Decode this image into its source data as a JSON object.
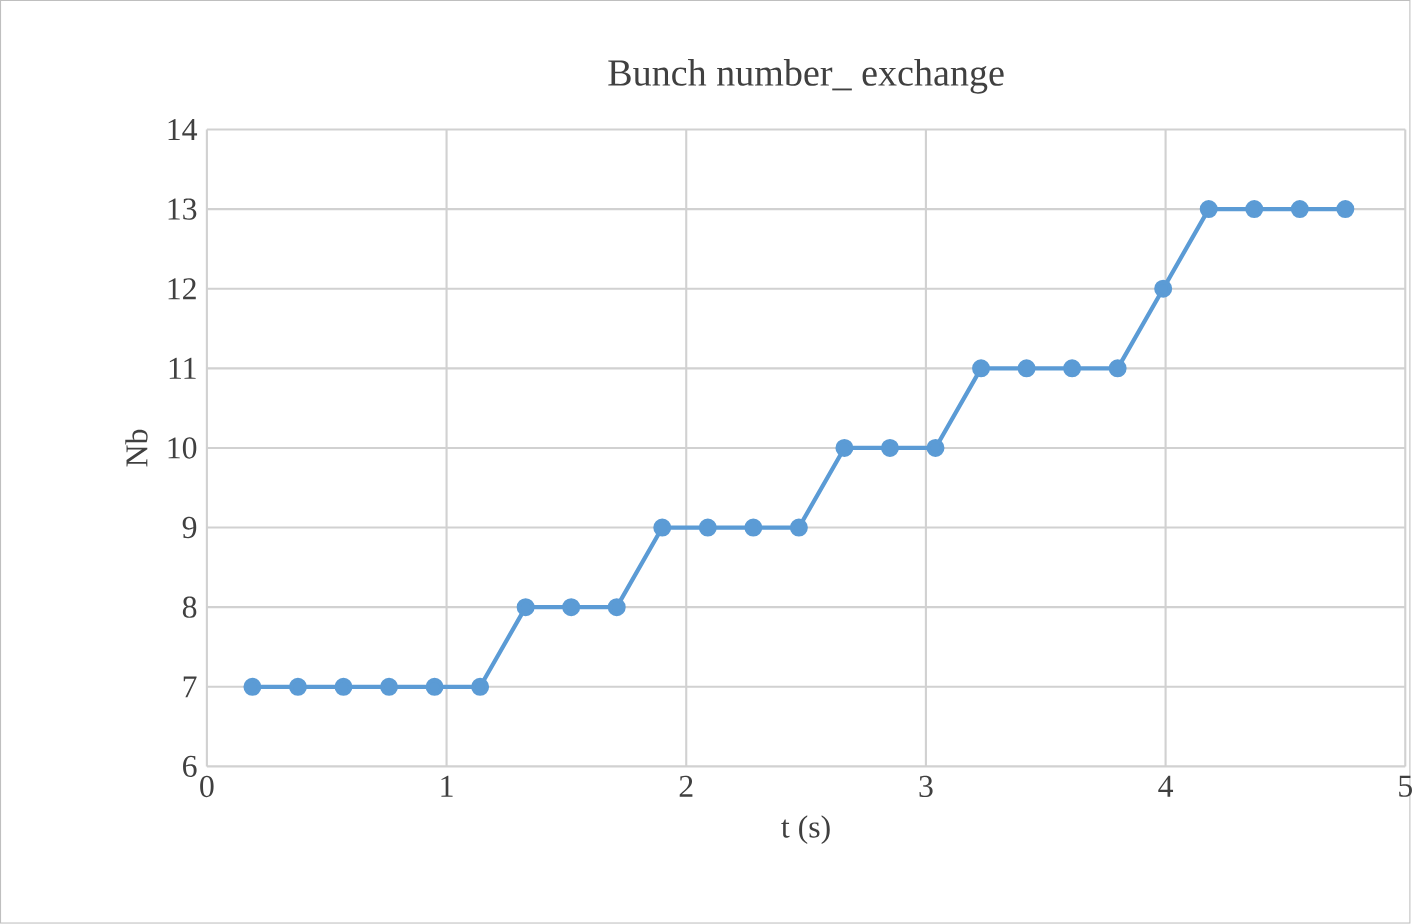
{
  "chart_data": {
    "type": "line",
    "title": "Bunch number_ exchange",
    "xlabel": "t (s)",
    "ylabel": "Nb",
    "x": [
      0.19,
      0.38,
      0.57,
      0.76,
      0.95,
      1.14,
      1.33,
      1.52,
      1.71,
      1.9,
      2.09,
      2.28,
      2.47,
      2.66,
      2.85,
      3.04,
      3.23,
      3.42,
      3.61,
      3.8,
      3.99,
      4.18,
      4.37,
      4.56,
      4.75
    ],
    "series": [
      {
        "color": "#5b9bd5",
        "values": [
          7,
          7,
          7,
          7,
          7,
          7,
          8,
          8,
          8,
          9,
          9,
          9,
          9,
          10,
          10,
          10,
          11,
          11,
          11,
          11,
          12,
          13,
          13,
          13,
          13
        ]
      }
    ],
    "xlim": [
      0,
      5
    ],
    "xticks": [
      0,
      1,
      2,
      3,
      4,
      5
    ],
    "ylim": [
      6,
      14
    ],
    "yticks": [
      6,
      7,
      8,
      9,
      10,
      11,
      12,
      13,
      14
    ],
    "grid": true,
    "marker": "circle",
    "line_style": "solid"
  }
}
